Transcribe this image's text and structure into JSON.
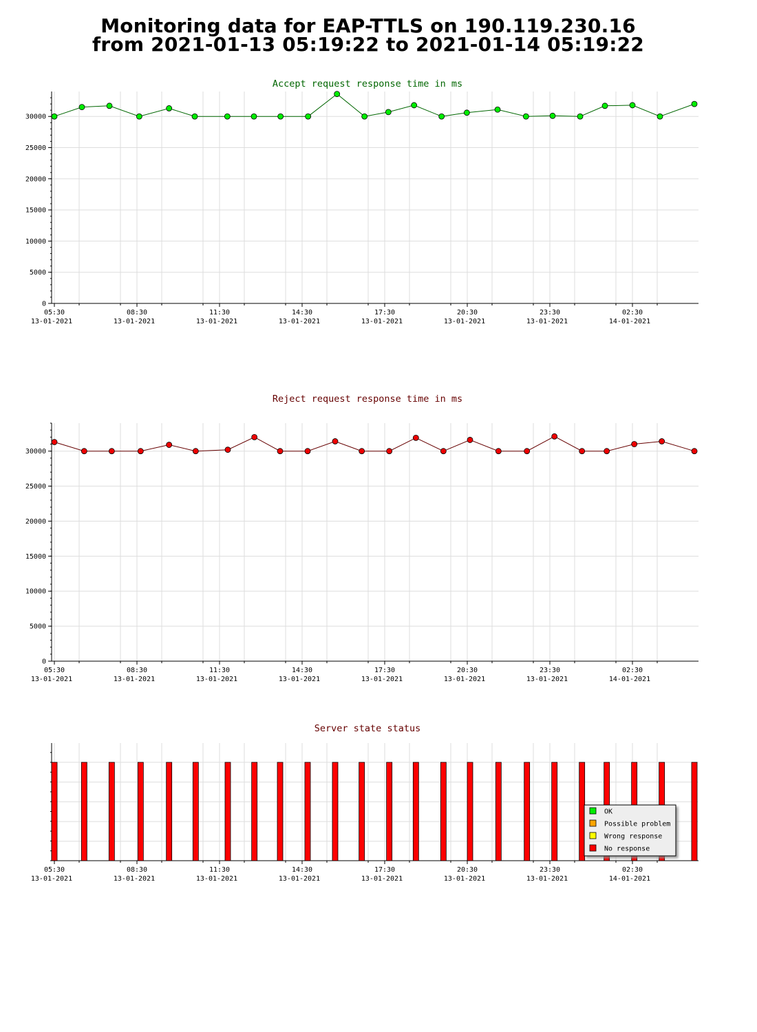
{
  "page": {
    "title_line1": "Monitoring data for EAP-TTLS on 190.119.230.16",
    "title_line2": "from 2021-01-13 05:19:22 to 2021-01-14 05:19:22"
  },
  "colors": {
    "accept_marker": "#00ee00",
    "accept_line": "#006600",
    "accept_title": "#006600",
    "reject_marker": "#ee0000",
    "reject_line": "#660000",
    "reject_title": "#660000",
    "status_title": "#660000",
    "no_response": "#ff0000",
    "ok": "#00ee00",
    "possible_problem": "#ffa500",
    "wrong_response": "#ffff00",
    "grid": "#dddddd"
  },
  "x_ticks": [
    {
      "time": "05:30",
      "date": "13-01-2021"
    },
    {
      "time": "08:30",
      "date": "13-01-2021"
    },
    {
      "time": "11:30",
      "date": "13-01-2021"
    },
    {
      "time": "14:30",
      "date": "13-01-2021"
    },
    {
      "time": "17:30",
      "date": "13-01-2021"
    },
    {
      "time": "20:30",
      "date": "13-01-2021"
    },
    {
      "time": "23:30",
      "date": "13-01-2021"
    },
    {
      "time": "02:30",
      "date": "14-01-2021"
    }
  ],
  "chart_data": [
    {
      "type": "line",
      "title": "Accept request response time in ms",
      "xlabel": "",
      "ylabel": "",
      "xlim": [
        "2021-01-13 05:19:22",
        "2021-01-14 05:19:22"
      ],
      "ylim": [
        0,
        34000
      ],
      "yticks": [
        0,
        5000,
        10000,
        15000,
        20000,
        25000,
        30000
      ],
      "grid": true,
      "series": [
        {
          "x": [
            "2021-01-13 05:30",
            "2021-01-13 06:30",
            "2021-01-13 07:30",
            "2021-01-13 08:35",
            "2021-01-13 09:40",
            "2021-01-13 10:36",
            "2021-01-13 11:47",
            "2021-01-13 12:45",
            "2021-01-13 13:43",
            "2021-01-13 14:43",
            "2021-01-13 15:46",
            "2021-01-13 16:46",
            "2021-01-13 17:38",
            "2021-01-13 18:34",
            "2021-01-13 19:34",
            "2021-01-13 20:29",
            "2021-01-13 21:36",
            "2021-01-13 22:38",
            "2021-01-13 23:36",
            "2021-01-14 00:36",
            "2021-01-14 01:30",
            "2021-01-14 02:30",
            "2021-01-14 03:30",
            "2021-01-14 04:45"
          ],
          "values": [
            30000,
            31500,
            31700,
            30000,
            31300,
            30000,
            30000,
            30000,
            30000,
            30000,
            33600,
            30000,
            30700,
            31800,
            30000,
            30600,
            31100,
            30000,
            30100,
            30000,
            31700,
            31800,
            30000,
            32000
          ]
        }
      ]
    },
    {
      "type": "line",
      "title": "Reject request response time in ms",
      "xlabel": "",
      "ylabel": "",
      "xlim": [
        "2021-01-13 05:19:22",
        "2021-01-14 05:19:22"
      ],
      "ylim": [
        0,
        34000
      ],
      "yticks": [
        0,
        5000,
        10000,
        15000,
        20000,
        25000,
        30000
      ],
      "grid": true,
      "series": [
        {
          "x": [
            "2021-01-13 05:30",
            "2021-01-13 06:35",
            "2021-01-13 07:35",
            "2021-01-13 08:38",
            "2021-01-13 09:40",
            "2021-01-13 10:38",
            "2021-01-13 11:48",
            "2021-01-13 12:46",
            "2021-01-13 13:42",
            "2021-01-13 14:42",
            "2021-01-13 15:42",
            "2021-01-13 16:40",
            "2021-01-13 17:40",
            "2021-01-13 18:38",
            "2021-01-13 19:38",
            "2021-01-13 20:36",
            "2021-01-13 21:38",
            "2021-01-13 22:40",
            "2021-01-13 23:40",
            "2021-01-14 00:40",
            "2021-01-14 01:34",
            "2021-01-14 02:34",
            "2021-01-14 03:34",
            "2021-01-14 04:45"
          ],
          "values": [
            31300,
            30000,
            30000,
            30000,
            30900,
            30000,
            30200,
            32000,
            30000,
            30000,
            31400,
            30000,
            30000,
            31900,
            30000,
            31600,
            30000,
            30000,
            32100,
            30000,
            30000,
            31000,
            31400,
            30000
          ]
        }
      ]
    },
    {
      "type": "bar",
      "title": "Server state status",
      "xlim": [
        "2021-01-13 05:19:22",
        "2021-01-14 05:19:22"
      ],
      "categories": [
        "2021-01-13 05:30",
        "2021-01-13 06:35",
        "2021-01-13 07:35",
        "2021-01-13 08:38",
        "2021-01-13 09:40",
        "2021-01-13 10:38",
        "2021-01-13 11:48",
        "2021-01-13 12:46",
        "2021-01-13 13:42",
        "2021-01-13 14:42",
        "2021-01-13 15:42",
        "2021-01-13 16:40",
        "2021-01-13 17:40",
        "2021-01-13 18:38",
        "2021-01-13 19:38",
        "2021-01-13 20:36",
        "2021-01-13 21:38",
        "2021-01-13 22:40",
        "2021-01-13 23:40",
        "2021-01-14 00:40",
        "2021-01-14 01:34",
        "2021-01-14 02:34",
        "2021-01-14 03:34",
        "2021-01-14 04:45"
      ],
      "states": [
        "No response",
        "No response",
        "No response",
        "No response",
        "No response",
        "No response",
        "No response",
        "No response",
        "No response",
        "No response",
        "No response",
        "No response",
        "No response",
        "No response",
        "No response",
        "No response",
        "No response",
        "No response",
        "No response",
        "No response",
        "No response",
        "No response",
        "No response",
        "No response"
      ],
      "legend": [
        "OK",
        "Possible problem",
        "Wrong response",
        "No response"
      ],
      "legend_position": "bottom-right",
      "grid": true
    }
  ]
}
